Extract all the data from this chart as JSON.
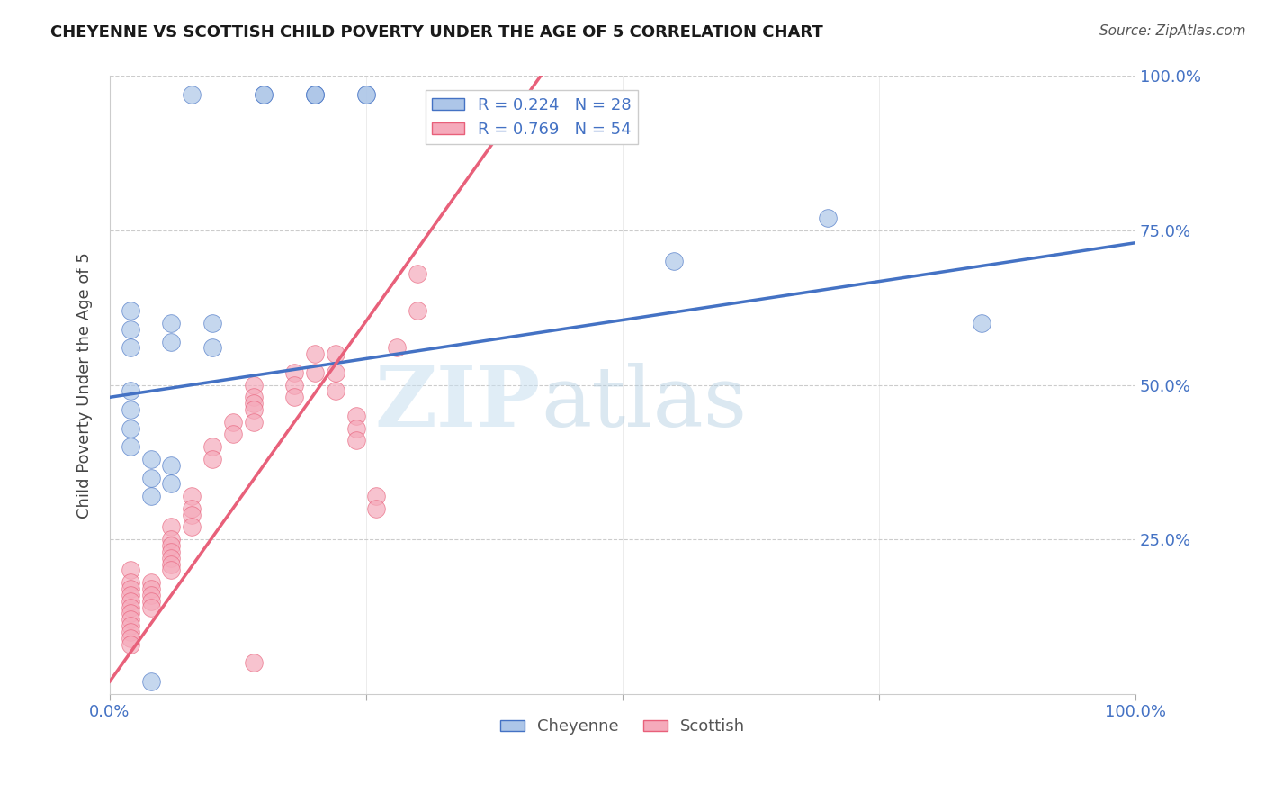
{
  "title": "CHEYENNE VS SCOTTISH CHILD POVERTY UNDER THE AGE OF 5 CORRELATION CHART",
  "source": "Source: ZipAtlas.com",
  "ylabel": "Child Poverty Under the Age of 5",
  "xlim": [
    0.0,
    1.0
  ],
  "ylim": [
    0.0,
    1.0
  ],
  "ytick_labels": [
    "25.0%",
    "50.0%",
    "75.0%",
    "100.0%"
  ],
  "ytick_positions": [
    0.25,
    0.5,
    0.75,
    1.0
  ],
  "cheyenne_R": 0.224,
  "cheyenne_N": 28,
  "scottish_R": 0.769,
  "scottish_N": 54,
  "cheyenne_color": "#adc6e8",
  "scottish_color": "#f5aabb",
  "cheyenne_line_color": "#4472c4",
  "scottish_line_color": "#e8607a",
  "axis_label_color": "#4472c4",
  "background_color": "#ffffff",
  "watermark_text": "ZIP",
  "watermark_text2": "atlas",
  "cheyenne_x": [
    0.08,
    0.15,
    0.15,
    0.2,
    0.2,
    0.2,
    0.25,
    0.25,
    0.02,
    0.02,
    0.02,
    0.02,
    0.02,
    0.02,
    0.02,
    0.04,
    0.04,
    0.04,
    0.06,
    0.06,
    0.06,
    0.06,
    0.1,
    0.1,
    0.55,
    0.7,
    0.85,
    0.04
  ],
  "cheyenne_y": [
    0.97,
    0.97,
    0.97,
    0.97,
    0.97,
    0.97,
    0.97,
    0.97,
    0.49,
    0.62,
    0.59,
    0.56,
    0.46,
    0.43,
    0.4,
    0.38,
    0.35,
    0.32,
    0.6,
    0.57,
    0.37,
    0.34,
    0.6,
    0.56,
    0.7,
    0.77,
    0.6,
    0.02
  ],
  "scottish_x": [
    0.02,
    0.02,
    0.02,
    0.02,
    0.02,
    0.02,
    0.02,
    0.02,
    0.02,
    0.02,
    0.02,
    0.02,
    0.04,
    0.04,
    0.04,
    0.04,
    0.04,
    0.06,
    0.06,
    0.06,
    0.06,
    0.06,
    0.06,
    0.06,
    0.08,
    0.08,
    0.08,
    0.08,
    0.1,
    0.1,
    0.12,
    0.12,
    0.14,
    0.14,
    0.14,
    0.14,
    0.14,
    0.18,
    0.18,
    0.18,
    0.2,
    0.2,
    0.22,
    0.22,
    0.22,
    0.24,
    0.24,
    0.24,
    0.26,
    0.26,
    0.28,
    0.3,
    0.3,
    0.14
  ],
  "scottish_y": [
    0.2,
    0.18,
    0.17,
    0.16,
    0.15,
    0.14,
    0.13,
    0.12,
    0.11,
    0.1,
    0.09,
    0.08,
    0.18,
    0.17,
    0.16,
    0.15,
    0.14,
    0.27,
    0.25,
    0.24,
    0.23,
    0.22,
    0.21,
    0.2,
    0.32,
    0.3,
    0.29,
    0.27,
    0.4,
    0.38,
    0.44,
    0.42,
    0.5,
    0.48,
    0.47,
    0.46,
    0.44,
    0.52,
    0.5,
    0.48,
    0.55,
    0.52,
    0.55,
    0.52,
    0.49,
    0.45,
    0.43,
    0.41,
    0.32,
    0.3,
    0.56,
    0.68,
    0.62,
    0.05
  ],
  "cheyenne_line_x": [
    0.0,
    1.0
  ],
  "cheyenne_line_y": [
    0.48,
    0.73
  ],
  "scottish_line_x": [
    0.0,
    0.42
  ],
  "scottish_line_y": [
    0.02,
    1.0
  ],
  "xtick_positions": [
    0.0,
    0.25,
    0.5,
    0.75,
    1.0
  ],
  "xtick_labels_show": [
    "0.0%",
    "",
    "",
    "",
    "100.0%"
  ]
}
